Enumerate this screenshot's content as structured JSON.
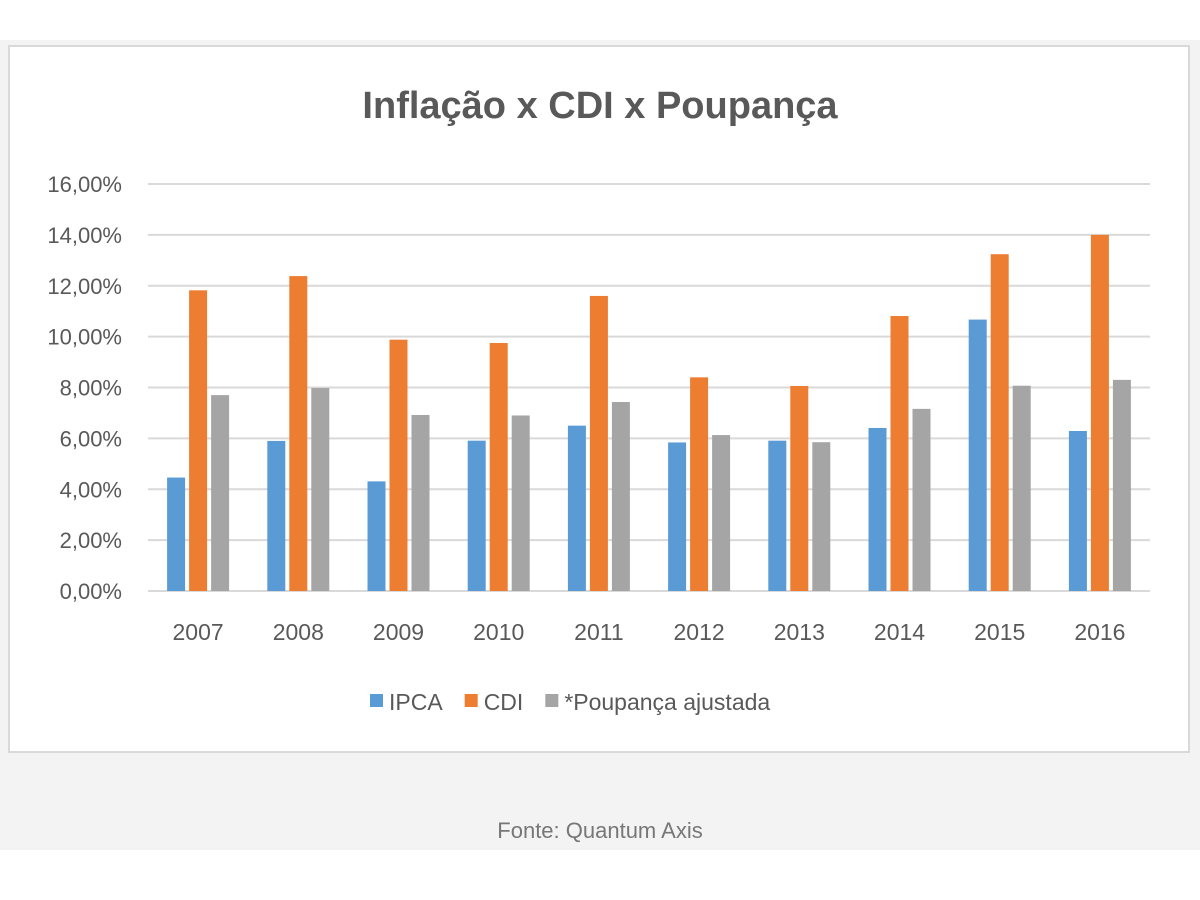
{
  "chart_data": {
    "type": "bar",
    "title": "Inflação x CDI x Poupança",
    "categories": [
      "2007",
      "2008",
      "2009",
      "2010",
      "2011",
      "2012",
      "2013",
      "2014",
      "2015",
      "2016"
    ],
    "series": [
      {
        "name": "IPCA",
        "color": "#5b9bd5",
        "values": [
          4.46,
          5.9,
          4.31,
          5.91,
          6.5,
          5.84,
          5.91,
          6.41,
          10.67,
          6.29
        ]
      },
      {
        "name": "CDI",
        "color": "#ed7d31",
        "values": [
          11.82,
          12.38,
          9.88,
          9.75,
          11.6,
          8.4,
          8.06,
          10.81,
          13.24,
          14.0
        ]
      },
      {
        "name": "*Poupança ajustada",
        "color": "#a5a5a5",
        "values": [
          7.7,
          7.98,
          6.92,
          6.9,
          7.43,
          6.13,
          5.85,
          7.16,
          8.07,
          8.3
        ]
      }
    ],
    "yticks": [
      "0,00%",
      "2,00%",
      "4,00%",
      "6,00%",
      "8,00%",
      "10,00%",
      "12,00%",
      "14,00%",
      "16,00%"
    ],
    "ylim": [
      0,
      16
    ],
    "grid": true,
    "legend": "bottom"
  },
  "source": "Fonte: Quantum Axis"
}
